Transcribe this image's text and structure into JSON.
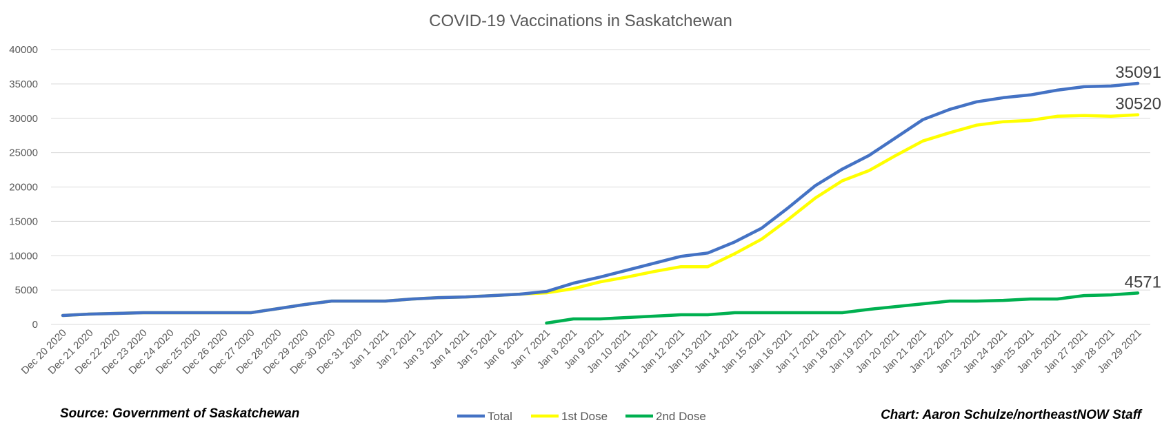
{
  "chart_data": {
    "type": "line",
    "title": "COVID-19 Vaccinations in Saskatchewan",
    "xlabel": "",
    "ylabel": "",
    "ylim": [
      0,
      40000
    ],
    "yticks": [
      "0",
      "5000",
      "10000",
      "15000",
      "20000",
      "25000",
      "30000",
      "35000",
      "40000"
    ],
    "grid": true,
    "legend_position": "bottom",
    "x": [
      "Dec 20 2020",
      "Dec 21 2020",
      "Dec 22 2020",
      "Dec 23 2020",
      "Dec 24 2020",
      "Dec 25 2020",
      "Dec 26 2020",
      "Dec 27 2020",
      "Dec 28 2020",
      "Dec 29 2020",
      "Dec 30 2020",
      "Dec 31 2020",
      "Jan 1 2021",
      "Jan 2 2021",
      "Jan 3 2021",
      "Jan 4 2021",
      "Jan 5 2021",
      "Jan 6 2021",
      "Jan 7 2021",
      "Jan 8 2021",
      "Jan 9 2021",
      "Jan 10 2021",
      "Jan 11 2021",
      "Jan 12 2021",
      "Jan 13 2021",
      "Jan 14 2021",
      "Jan 15 2021",
      "Jan 16 2021",
      "Jan 17 2021",
      "Jan 18 2021",
      "Jan 19 2021",
      "Jan 20 2021",
      "Jan 21 2021",
      "Jan 22 2021",
      "Jan 23 2021",
      "Jan 24 2021",
      "Jan 25 2021",
      "Jan 26 2021",
      "Jan 27 2021",
      "Jan 28 2021",
      "Jan 29 2021"
    ],
    "series": [
      {
        "name": "Total",
        "color": "#4472c4",
        "end_label": "35091",
        "values": [
          1300,
          1500,
          1600,
          1700,
          1700,
          1700,
          1700,
          1700,
          2300,
          2900,
          3400,
          3400,
          3400,
          3700,
          3900,
          4000,
          4200,
          4400,
          4800,
          6000,
          6900,
          7900,
          8900,
          9900,
          10400,
          12000,
          14000,
          17000,
          20200,
          22600,
          24600,
          27200,
          29800,
          31300,
          32400,
          33000,
          33400,
          34100,
          34600,
          34700,
          35091
        ]
      },
      {
        "name": "1st Dose",
        "color": "#ffff00",
        "end_label": "30520",
        "values": [
          1300,
          1500,
          1600,
          1700,
          1700,
          1700,
          1700,
          1700,
          2300,
          2900,
          3400,
          3400,
          3400,
          3700,
          3900,
          4000,
          4200,
          4400,
          4600,
          5200,
          6200,
          6900,
          7700,
          8400,
          8400,
          10300,
          12400,
          15300,
          18400,
          20900,
          22400,
          24600,
          26700,
          27900,
          29000,
          29500,
          29700,
          30300,
          30400,
          30300,
          30520
        ]
      },
      {
        "name": "2nd Dose",
        "color": "#00b050",
        "end_label": "4571",
        "values": [
          null,
          null,
          null,
          null,
          null,
          null,
          null,
          null,
          null,
          null,
          null,
          null,
          null,
          null,
          null,
          null,
          null,
          null,
          200,
          800,
          800,
          1000,
          1200,
          1400,
          1400,
          1700,
          1700,
          1700,
          1700,
          1700,
          2200,
          2600,
          3000,
          3400,
          3400,
          3500,
          3700,
          3700,
          4200,
          4300,
          4571
        ]
      }
    ]
  },
  "footer": {
    "source": "Source: Government of Saskatchewan",
    "credit": "Chart: Aaron Schulze/northeastNOW Staff"
  }
}
